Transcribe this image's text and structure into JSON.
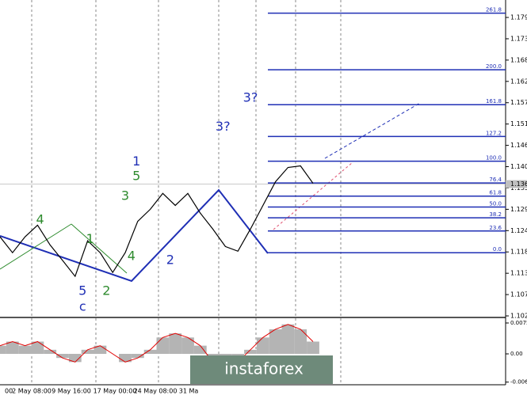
{
  "chart_data": {
    "type": "line",
    "price": {
      "color": "#000000",
      "values": [
        1.1225,
        1.1184,
        1.1225,
        1.1255,
        1.1204,
        1.1164,
        1.1123,
        1.1215,
        1.1184,
        1.1133,
        1.1184,
        1.1265,
        1.1296,
        1.1337,
        1.1306,
        1.1337,
        1.1286,
        1.1245,
        1.12,
        1.1188,
        1.1245,
        1.1306,
        1.1367,
        1.1404,
        1.1408,
        1.1363
      ]
    },
    "ylim": [
      1.1019,
      1.1836
    ],
    "yticks": [
      1.1791,
      1.1736,
      1.1681,
      1.1626,
      1.1571,
      1.1516,
      1.1461,
      1.1406,
      1.1351,
      1.1296,
      1.1241,
      1.1186,
      1.1131,
      1.1076,
      1.1021
    ],
    "current_price": 1.1361,
    "fib_levels": [
      {
        "label": "261.8",
        "price": 1.1802
      },
      {
        "label": "200.0",
        "price": 1.1656
      },
      {
        "label": "161.8",
        "price": 1.1566
      },
      {
        "label": "127.2",
        "price": 1.1484
      },
      {
        "label": "100.0",
        "price": 1.142
      },
      {
        "label": "76.4",
        "price": 1.1364
      },
      {
        "label": "61.8",
        "price": 1.133
      },
      {
        "label": "50.0",
        "price": 1.1302
      },
      {
        "label": "38.2",
        "price": 1.1274
      },
      {
        "label": "23.6",
        "price": 1.124
      },
      {
        "label": "0.0",
        "price": 1.1184
      }
    ],
    "wave_labels": [
      {
        "text": "4",
        "color": "#2e8b2e",
        "i": 3.2,
        "price": 1.1268
      },
      {
        "text": "1",
        "color": "#2e8b2e",
        "i": 7.2,
        "price": 1.1218
      },
      {
        "text": "5",
        "color": "#1f2fb5",
        "i": 6.6,
        "price": 1.1084
      },
      {
        "text": "c",
        "color": "#1f2fb5",
        "i": 6.6,
        "price": 1.1043
      },
      {
        "text": "2",
        "color": "#2e8b2e",
        "i": 8.5,
        "price": 1.1084
      },
      {
        "text": "3",
        "color": "#2e8b2e",
        "i": 10,
        "price": 1.1329
      },
      {
        "text": "4",
        "color": "#2e8b2e",
        "i": 10.5,
        "price": 1.1174
      },
      {
        "text": "1",
        "color": "#1f2fb5",
        "i": 10.9,
        "price": 1.1418
      },
      {
        "text": "5",
        "color": "#2e8b2e",
        "i": 10.9,
        "price": 1.1381
      },
      {
        "text": "2",
        "color": "#1f2fb5",
        "i": 13.6,
        "price": 1.1164
      },
      {
        "text": "3?",
        "color": "#1f2fb5",
        "i": 17.8,
        "price": 1.1508
      },
      {
        "text": "3?",
        "color": "#1f2fb5",
        "i": 20,
        "price": 1.1583
      }
    ],
    "oscillator": {
      "color": "#e00000",
      "bar_color": "#b4b4b4",
      "values": [
        0.002,
        0.003,
        0.002,
        0.003,
        0.001,
        -0.001,
        -0.002,
        0.001,
        0.002,
        0.0,
        -0.002,
        -0.001,
        0.001,
        0.004,
        0.005,
        0.004,
        0.002,
        -0.002,
        -0.003,
        -0.002,
        0.001,
        0.004,
        0.006,
        0.0072,
        0.006,
        0.003
      ],
      "ylim": [
        -0.00754,
        0.00831
      ],
      "yticks": [
        0.00754,
        {
          "value": 0,
          "label": "0.00"
        },
        -0.00689
      ]
    },
    "xtick_labels": [
      "00",
      "2 May 08:00",
      "9 May 16:00",
      "17 May 00:00",
      "24 May 08:00",
      "31 Ma"
    ],
    "brand": "instaforex"
  }
}
